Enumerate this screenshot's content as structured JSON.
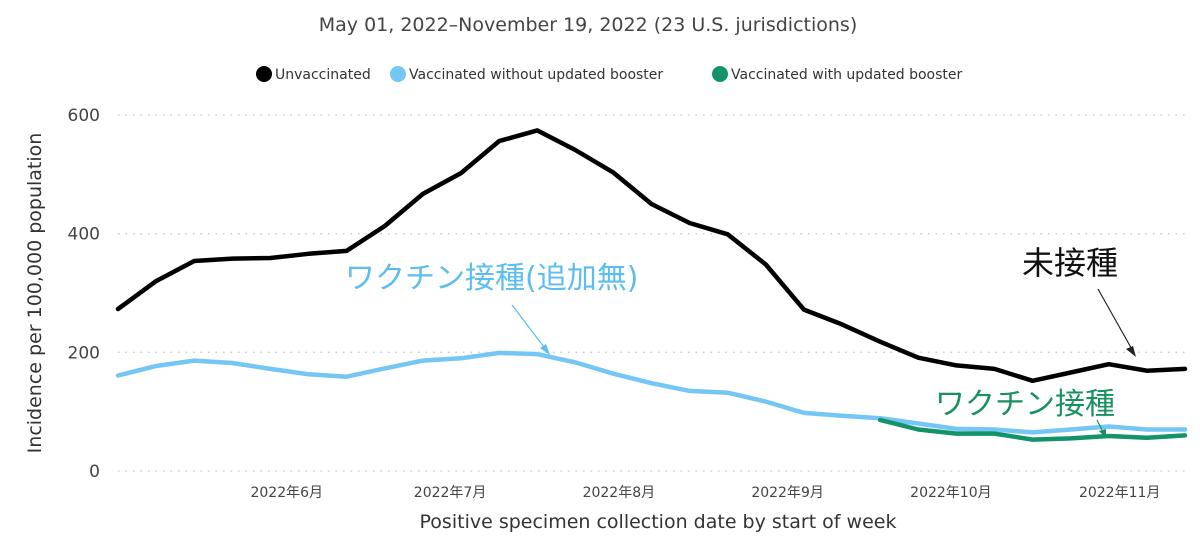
{
  "chart_data": {
    "type": "line",
    "title": "May 01, 2022–November 19, 2022 (23 U.S. jurisdictions)",
    "xlabel": "Positive specimen collection date by start of week",
    "ylabel": "Incidence per 100,000 population",
    "ylim": [
      0,
      600
    ],
    "yticks": [
      0,
      200,
      400,
      600
    ],
    "grid": true,
    "legend_position": "top",
    "x": [
      "2022-05-01",
      "2022-05-08",
      "2022-05-15",
      "2022-05-22",
      "2022-05-29",
      "2022-06-05",
      "2022-06-12",
      "2022-06-19",
      "2022-06-26",
      "2022-07-03",
      "2022-07-10",
      "2022-07-17",
      "2022-07-24",
      "2022-07-31",
      "2022-08-07",
      "2022-08-14",
      "2022-08-21",
      "2022-08-28",
      "2022-09-04",
      "2022-09-11",
      "2022-09-18",
      "2022-09-25",
      "2022-10-02",
      "2022-10-09",
      "2022-10-16",
      "2022-10-23",
      "2022-10-30",
      "2022-11-06",
      "2022-11-13"
    ],
    "x_tick_labels": [
      "2022年6月",
      "2022年7月",
      "2022年8月",
      "2022年9月",
      "2022年10月",
      "2022年11月"
    ],
    "x_tick_dates": [
      "2022-06-01",
      "2022-07-01",
      "2022-08-01",
      "2022-09-01",
      "2022-10-01",
      "2022-11-01"
    ],
    "series": [
      {
        "name": "Unvaccinated",
        "color": "#000000",
        "values": [
          273,
          320,
          354,
          358,
          359,
          366,
          371,
          413,
          467,
          502,
          556,
          574,
          541,
          503,
          450,
          418,
          399,
          348,
          272,
          247,
          218,
          191,
          178,
          172,
          152,
          166,
          180,
          169,
          172
        ]
      },
      {
        "name": "Vaccinated without updated booster",
        "color": "#74c6f4",
        "values": [
          161,
          177,
          186,
          182,
          172,
          163,
          159,
          173,
          186,
          190,
          199,
          197,
          183,
          164,
          148,
          135,
          132,
          117,
          98,
          93,
          89,
          80,
          71,
          70,
          65,
          70,
          75,
          70,
          70
        ]
      },
      {
        "name": "Vaccinated with updated booster",
        "color": "#13936a",
        "values": [
          null,
          null,
          null,
          null,
          null,
          null,
          null,
          null,
          null,
          null,
          null,
          null,
          null,
          null,
          null,
          null,
          null,
          null,
          null,
          null,
          86,
          70,
          63,
          63,
          53,
          55,
          59,
          56,
          60
        ]
      }
    ],
    "annotations": [
      {
        "text": "未接種",
        "color": "#111111"
      },
      {
        "text": "ワクチン接種(追加無)",
        "color": "#5bbdf0"
      },
      {
        "text": "ワクチン接種",
        "color": "#16915f"
      }
    ]
  }
}
